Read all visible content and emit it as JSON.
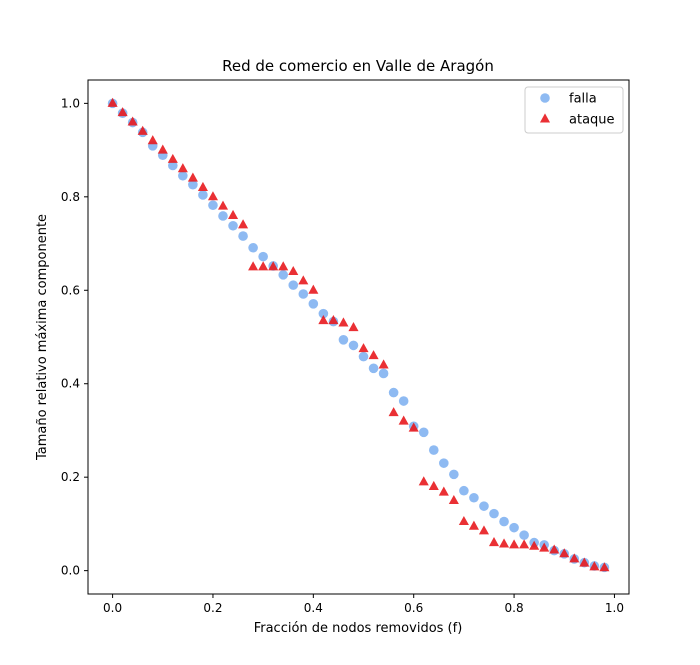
{
  "chart_data": {
    "type": "scatter",
    "title": "Red de comercio en Valle de Aragón",
    "xlabel": "Fracción de nodos removidos (f)",
    "ylabel": "Tamaño relativo máxima componente",
    "xlim": [
      -0.049,
      1.029
    ],
    "ylim": [
      -0.05,
      1.05
    ],
    "x_ticks": [
      0.0,
      0.2,
      0.4,
      0.6,
      0.8,
      1.0
    ],
    "x_tick_labels": [
      "0.0",
      "0.2",
      "0.4",
      "0.6",
      "0.8",
      "1.0"
    ],
    "y_ticks": [
      0.0,
      0.2,
      0.4,
      0.6,
      0.8,
      1.0
    ],
    "y_tick_labels": [
      "0.0",
      "0.2",
      "0.4",
      "0.6",
      "0.8",
      "1.0"
    ],
    "grid": false,
    "legend_position": "top-right",
    "x": [
      0.0,
      0.02,
      0.04,
      0.06,
      0.08,
      0.1,
      0.12,
      0.14,
      0.16,
      0.18,
      0.2,
      0.22,
      0.24,
      0.26,
      0.28,
      0.3,
      0.32,
      0.34,
      0.36,
      0.38,
      0.4,
      0.42,
      0.44,
      0.46,
      0.48,
      0.5,
      0.52,
      0.54,
      0.56,
      0.58,
      0.6,
      0.62,
      0.64,
      0.66,
      0.68,
      0.7,
      0.72,
      0.74,
      0.76,
      0.78,
      0.8,
      0.82,
      0.84,
      0.86,
      0.88,
      0.9,
      0.92,
      0.94,
      0.96,
      0.98
    ],
    "series": [
      {
        "name": "falla",
        "marker": "circle",
        "color": "#7aaef0",
        "values": [
          1.0,
          0.979,
          0.959,
          0.938,
          0.909,
          0.889,
          0.867,
          0.845,
          0.826,
          0.804,
          0.782,
          0.759,
          0.738,
          0.716,
          0.691,
          0.672,
          0.652,
          0.633,
          0.611,
          0.592,
          0.571,
          0.55,
          0.533,
          0.494,
          0.482,
          0.458,
          0.433,
          0.422,
          0.381,
          0.363,
          0.309,
          0.296,
          0.258,
          0.23,
          0.206,
          0.171,
          0.156,
          0.138,
          0.122,
          0.105,
          0.092,
          0.076,
          0.06,
          0.055,
          0.043,
          0.036,
          0.025,
          0.017,
          0.01,
          0.007
        ]
      },
      {
        "name": "ataque",
        "marker": "triangle",
        "color": "#e8191e",
        "values": [
          1.0,
          0.98,
          0.96,
          0.94,
          0.92,
          0.9,
          0.88,
          0.86,
          0.84,
          0.82,
          0.8,
          0.78,
          0.76,
          0.74,
          0.65,
          0.65,
          0.65,
          0.65,
          0.64,
          0.62,
          0.6,
          0.535,
          0.535,
          0.53,
          0.52,
          0.475,
          0.46,
          0.44,
          0.338,
          0.32,
          0.305,
          0.19,
          0.18,
          0.168,
          0.15,
          0.105,
          0.095,
          0.085,
          0.06,
          0.057,
          0.055,
          0.055,
          0.052,
          0.048,
          0.044,
          0.036,
          0.025,
          0.016,
          0.008,
          0.006
        ]
      }
    ]
  }
}
